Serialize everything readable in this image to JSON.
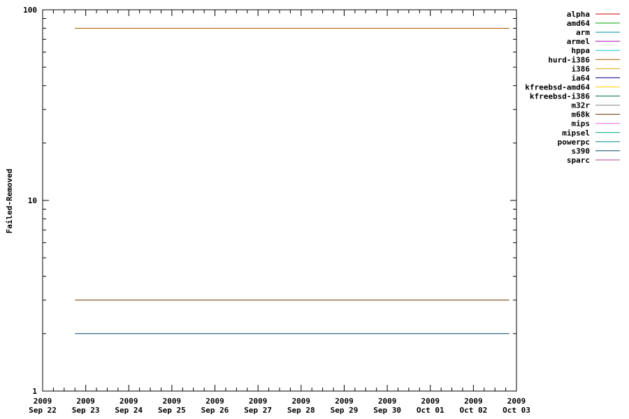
{
  "chart_data": {
    "type": "line",
    "title": "",
    "xlabel": "",
    "ylabel": "Failed-Removed",
    "yscale": "log",
    "ylim": [
      1,
      100
    ],
    "xlim": [
      "2009-09-22",
      "2009-10-03"
    ],
    "grid": false,
    "legend_position": "right",
    "y_ticks": [
      {
        "value": 1,
        "label": "1"
      },
      {
        "value": 10,
        "label": "10"
      },
      {
        "value": 100,
        "label": "100"
      }
    ],
    "x_ticks": [
      {
        "date": "2009-09-22",
        "year": "2009",
        "label": "Sep 22"
      },
      {
        "date": "2009-09-23",
        "year": "2009",
        "label": "Sep 23"
      },
      {
        "date": "2009-09-24",
        "year": "2009",
        "label": "Sep 24"
      },
      {
        "date": "2009-09-25",
        "year": "2009",
        "label": "Sep 25"
      },
      {
        "date": "2009-09-26",
        "year": "2009",
        "label": "Sep 26"
      },
      {
        "date": "2009-09-27",
        "year": "2009",
        "label": "Sep 27"
      },
      {
        "date": "2009-09-28",
        "year": "2009",
        "label": "Sep 28"
      },
      {
        "date": "2009-09-29",
        "year": "2009",
        "label": "Sep 29"
      },
      {
        "date": "2009-09-30",
        "year": "2009",
        "label": "Sep 30"
      },
      {
        "date": "2009-10-01",
        "year": "2009",
        "label": "Oct 01"
      },
      {
        "date": "2009-10-02",
        "year": "2009",
        "label": "Oct 02"
      },
      {
        "date": "2009-10-03",
        "year": "2009",
        "label": "Oct 03"
      }
    ],
    "series": [
      {
        "name": "alpha",
        "color": "#cc0000",
        "points": []
      },
      {
        "name": "amd64",
        "color": "#00aa00",
        "points": []
      },
      {
        "name": "arm",
        "color": "#0088aa",
        "points": []
      },
      {
        "name": "armel",
        "color": "#aa00aa",
        "points": []
      },
      {
        "name": "hppa",
        "color": "#00cccc",
        "points": []
      },
      {
        "name": "hurd-i386",
        "color": "#aa5500",
        "points": [
          {
            "x": "2009-09-22 18:00",
            "y": 80
          },
          {
            "x": "2009-10-02 20:00",
            "y": 80
          }
        ]
      },
      {
        "name": "i386",
        "color": "#ddaa00",
        "points": []
      },
      {
        "name": "ia64",
        "color": "#000088",
        "points": []
      },
      {
        "name": "kfreebsd-amd64",
        "color": "#ffcc00",
        "points": []
      },
      {
        "name": "kfreebsd-i386",
        "color": "#006644",
        "points": []
      },
      {
        "name": "m32r",
        "color": "#888888",
        "points": []
      },
      {
        "name": "m68k",
        "color": "#663300",
        "points": [
          {
            "x": "2009-09-22 18:00",
            "y": 3
          },
          {
            "x": "2009-10-02 20:00",
            "y": 3
          }
        ]
      },
      {
        "name": "mips",
        "color": "#ee66ee",
        "points": []
      },
      {
        "name": "mipsel",
        "color": "#00aa66",
        "points": []
      },
      {
        "name": "powerpc",
        "color": "#008888",
        "points": []
      },
      {
        "name": "s390",
        "color": "#004466",
        "points": [
          {
            "x": "2009-09-22 18:00",
            "y": 2
          },
          {
            "x": "2009-10-02 20:00",
            "y": 2
          }
        ]
      },
      {
        "name": "sparc",
        "color": "#bb4488",
        "points": []
      }
    ]
  }
}
